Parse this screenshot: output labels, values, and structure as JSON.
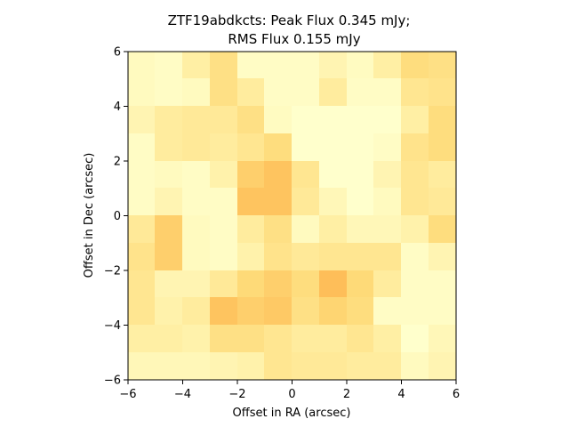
{
  "chart_data": {
    "type": "heatmap",
    "title_line1": "ZTF19abdkcts: Peak Flux 0.345 mJy;",
    "title_line2": "RMS Flux 0.155 mJy",
    "xlabel": "Offset in RA (arcsec)",
    "ylabel": "Offset in Dec (arcsec)",
    "xlim": [
      -6,
      6
    ],
    "ylim": [
      -6,
      6
    ],
    "xticks": [
      -6,
      -4,
      -2,
      0,
      2,
      4,
      6
    ],
    "yticks": [
      -6,
      -4,
      -2,
      0,
      2,
      4,
      6
    ],
    "xtick_labels": [
      "−6",
      "−4",
      "−2",
      "0",
      "2",
      "4",
      "6"
    ],
    "ytick_labels": [
      "−6",
      "−4",
      "−2",
      "0",
      "2",
      "4",
      "6"
    ],
    "grid": false,
    "colormap": [
      "#ffffcc",
      "#ffeda0",
      "#fed976",
      "#feb24c"
    ],
    "rows_top_to_bottom": [
      [
        0.1,
        0.05,
        0.3,
        0.55,
        0.05,
        0.05,
        0.05,
        0.2,
        0.08,
        0.3,
        0.6,
        0.55
      ],
      [
        0.1,
        0.05,
        0.1,
        0.55,
        0.35,
        0.05,
        0.05,
        0.35,
        0.05,
        0.05,
        0.45,
        0.5
      ],
      [
        0.2,
        0.35,
        0.4,
        0.4,
        0.55,
        0.08,
        0.0,
        0.0,
        0.0,
        0.0,
        0.3,
        0.6
      ],
      [
        0.05,
        0.35,
        0.4,
        0.35,
        0.45,
        0.6,
        0.0,
        0.0,
        0.0,
        0.05,
        0.5,
        0.6
      ],
      [
        0.05,
        0.1,
        0.05,
        0.25,
        0.75,
        0.85,
        0.45,
        0.0,
        0.0,
        0.2,
        0.45,
        0.35
      ],
      [
        0.05,
        0.2,
        0.05,
        0.05,
        0.85,
        0.85,
        0.4,
        0.15,
        0.0,
        0.1,
        0.45,
        0.4
      ],
      [
        0.4,
        0.75,
        0.1,
        0.05,
        0.35,
        0.55,
        0.1,
        0.3,
        0.15,
        0.15,
        0.25,
        0.6
      ],
      [
        0.5,
        0.75,
        0.1,
        0.05,
        0.25,
        0.5,
        0.4,
        0.45,
        0.45,
        0.45,
        0.05,
        0.2
      ],
      [
        0.45,
        0.2,
        0.2,
        0.4,
        0.65,
        0.75,
        0.6,
        0.9,
        0.65,
        0.35,
        0.05,
        0.05
      ],
      [
        0.45,
        0.25,
        0.35,
        0.85,
        0.75,
        0.8,
        0.55,
        0.7,
        0.6,
        0.05,
        0.05,
        0.05
      ],
      [
        0.3,
        0.3,
        0.25,
        0.55,
        0.55,
        0.45,
        0.35,
        0.35,
        0.45,
        0.3,
        0.0,
        0.15
      ],
      [
        0.15,
        0.15,
        0.15,
        0.2,
        0.25,
        0.45,
        0.4,
        0.4,
        0.35,
        0.35,
        0.1,
        0.2
      ]
    ]
  }
}
